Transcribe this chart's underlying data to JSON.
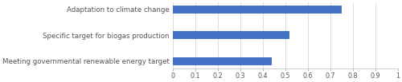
{
  "categories": [
    "Meeting governmental renewable energy target",
    "Specific target for biogas production",
    "Adaptation to climate change"
  ],
  "values": [
    0.44,
    0.52,
    0.75
  ],
  "bar_color": "#4472C4",
  "xlim": [
    0,
    1.0
  ],
  "xticks": [
    0,
    0.1,
    0.2,
    0.3,
    0.4,
    0.5,
    0.6,
    0.7,
    0.8,
    0.9,
    1.0
  ],
  "xtick_labels": [
    "0",
    "0.1",
    "0.2",
    "0.3",
    "0.4",
    "0.5",
    "0.6",
    "0.7",
    "0.8",
    "0.9",
    "1"
  ],
  "bar_height": 0.32,
  "figsize": [
    5.0,
    1.03
  ],
  "dpi": 100,
  "label_fontsize": 6.2,
  "tick_fontsize": 5.8,
  "background_color": "#ffffff",
  "grid_color": "#d0d0d0",
  "label_color": "#555555",
  "tick_color": "#555555"
}
